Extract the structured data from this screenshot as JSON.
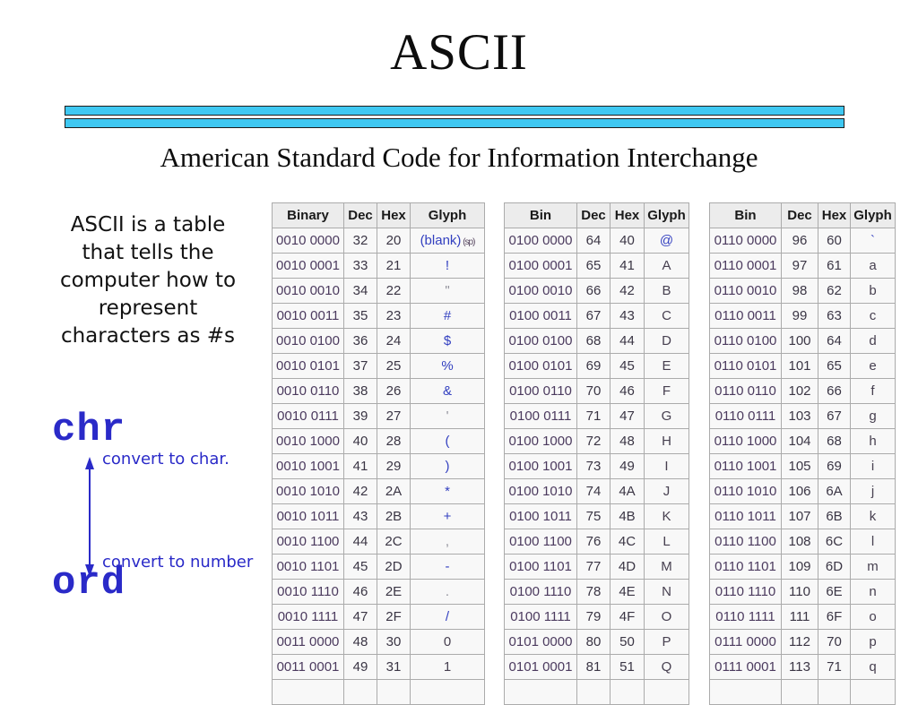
{
  "slide": {
    "title": "ASCII",
    "subtitle": "American Standard Code for Information Interchange",
    "description_lines": [
      "ASCII is a table",
      "that tells the",
      "computer how to",
      "represent",
      "characters as #s"
    ],
    "chr_label": "chr",
    "convert_to_char_label": "convert to char.",
    "convert_to_number_label": "convert to number",
    "ord_label": "ord",
    "colors": {
      "accent_bar_cyan": "#3fc8f2",
      "code_blue": "#2a2ac8",
      "table_link_blue": "#3340c0",
      "table_binary_purple": "#4b3a5e",
      "table_number_dark": "#3a3544",
      "table_glyph_muted": "#90909a",
      "table_glyph_plain": "#474050"
    }
  },
  "tables": [
    {
      "headers": [
        "Binary",
        "Dec",
        "Hex",
        "Glyph"
      ],
      "rows": [
        {
          "bin": "0010 0000",
          "dec": "32",
          "hex": "20",
          "glyph": "(blank)",
          "glyph_small": " (sp)",
          "style": "link"
        },
        {
          "bin": "0010 0001",
          "dec": "33",
          "hex": "21",
          "glyph": "!",
          "style": "link"
        },
        {
          "bin": "0010 0010",
          "dec": "34",
          "hex": "22",
          "glyph": "\"",
          "style": "muted"
        },
        {
          "bin": "0010 0011",
          "dec": "35",
          "hex": "23",
          "glyph": "#",
          "style": "link"
        },
        {
          "bin": "0010 0100",
          "dec": "36",
          "hex": "24",
          "glyph": "$",
          "style": "link"
        },
        {
          "bin": "0010 0101",
          "dec": "37",
          "hex": "25",
          "glyph": "%",
          "style": "link"
        },
        {
          "bin": "0010 0110",
          "dec": "38",
          "hex": "26",
          "glyph": "&",
          "style": "link"
        },
        {
          "bin": "0010 0111",
          "dec": "39",
          "hex": "27",
          "glyph": "'",
          "style": "muted"
        },
        {
          "bin": "0010 1000",
          "dec": "40",
          "hex": "28",
          "glyph": "(",
          "style": "link"
        },
        {
          "bin": "0010 1001",
          "dec": "41",
          "hex": "29",
          "glyph": ")",
          "style": "link"
        },
        {
          "bin": "0010 1010",
          "dec": "42",
          "hex": "2A",
          "glyph": "*",
          "style": "link"
        },
        {
          "bin": "0010 1011",
          "dec": "43",
          "hex": "2B",
          "glyph": "+",
          "style": "link"
        },
        {
          "bin": "0010 1100",
          "dec": "44",
          "hex": "2C",
          "glyph": ",",
          "style": "muted"
        },
        {
          "bin": "0010 1101",
          "dec": "45",
          "hex": "2D",
          "glyph": "-",
          "style": "link"
        },
        {
          "bin": "0010 1110",
          "dec": "46",
          "hex": "2E",
          "glyph": ".",
          "style": "muted"
        },
        {
          "bin": "0010 1111",
          "dec": "47",
          "hex": "2F",
          "glyph": "/",
          "style": "link"
        },
        {
          "bin": "0011 0000",
          "dec": "48",
          "hex": "30",
          "glyph": "0",
          "style": "plain"
        },
        {
          "bin": "0011 0001",
          "dec": "49",
          "hex": "31",
          "glyph": "1",
          "style": "plain"
        }
      ],
      "partial_row_visible": true
    },
    {
      "headers": [
        "Bin",
        "Dec",
        "Hex",
        "Glyph"
      ],
      "rows": [
        {
          "bin": "0100 0000",
          "dec": "64",
          "hex": "40",
          "glyph": "@",
          "style": "link"
        },
        {
          "bin": "0100 0001",
          "dec": "65",
          "hex": "41",
          "glyph": "A",
          "style": "plain"
        },
        {
          "bin": "0100 0010",
          "dec": "66",
          "hex": "42",
          "glyph": "B",
          "style": "plain"
        },
        {
          "bin": "0100 0011",
          "dec": "67",
          "hex": "43",
          "glyph": "C",
          "style": "plain"
        },
        {
          "bin": "0100 0100",
          "dec": "68",
          "hex": "44",
          "glyph": "D",
          "style": "plain"
        },
        {
          "bin": "0100 0101",
          "dec": "69",
          "hex": "45",
          "glyph": "E",
          "style": "plain"
        },
        {
          "bin": "0100 0110",
          "dec": "70",
          "hex": "46",
          "glyph": "F",
          "style": "plain"
        },
        {
          "bin": "0100 0111",
          "dec": "71",
          "hex": "47",
          "glyph": "G",
          "style": "plain"
        },
        {
          "bin": "0100 1000",
          "dec": "72",
          "hex": "48",
          "glyph": "H",
          "style": "plain"
        },
        {
          "bin": "0100 1001",
          "dec": "73",
          "hex": "49",
          "glyph": "I",
          "style": "plain"
        },
        {
          "bin": "0100 1010",
          "dec": "74",
          "hex": "4A",
          "glyph": "J",
          "style": "plain"
        },
        {
          "bin": "0100 1011",
          "dec": "75",
          "hex": "4B",
          "glyph": "K",
          "style": "plain"
        },
        {
          "bin": "0100 1100",
          "dec": "76",
          "hex": "4C",
          "glyph": "L",
          "style": "plain"
        },
        {
          "bin": "0100 1101",
          "dec": "77",
          "hex": "4D",
          "glyph": "M",
          "style": "plain"
        },
        {
          "bin": "0100 1110",
          "dec": "78",
          "hex": "4E",
          "glyph": "N",
          "style": "plain"
        },
        {
          "bin": "0100 1111",
          "dec": "79",
          "hex": "4F",
          "glyph": "O",
          "style": "plain"
        },
        {
          "bin": "0101 0000",
          "dec": "80",
          "hex": "50",
          "glyph": "P",
          "style": "plain"
        },
        {
          "bin": "0101 0001",
          "dec": "81",
          "hex": "51",
          "glyph": "Q",
          "style": "plain"
        }
      ],
      "partial_row_visible": true
    },
    {
      "headers": [
        "Bin",
        "Dec",
        "Hex",
        "Glyph"
      ],
      "rows": [
        {
          "bin": "0110 0000",
          "dec": "96",
          "hex": "60",
          "glyph": "`",
          "style": "link"
        },
        {
          "bin": "0110 0001",
          "dec": "97",
          "hex": "61",
          "glyph": "a",
          "style": "plain"
        },
        {
          "bin": "0110 0010",
          "dec": "98",
          "hex": "62",
          "glyph": "b",
          "style": "plain"
        },
        {
          "bin": "0110 0011",
          "dec": "99",
          "hex": "63",
          "glyph": "c",
          "style": "plain"
        },
        {
          "bin": "0110 0100",
          "dec": "100",
          "hex": "64",
          "glyph": "d",
          "style": "plain"
        },
        {
          "bin": "0110 0101",
          "dec": "101",
          "hex": "65",
          "glyph": "e",
          "style": "plain"
        },
        {
          "bin": "0110 0110",
          "dec": "102",
          "hex": "66",
          "glyph": "f",
          "style": "plain"
        },
        {
          "bin": "0110 0111",
          "dec": "103",
          "hex": "67",
          "glyph": "g",
          "style": "plain"
        },
        {
          "bin": "0110 1000",
          "dec": "104",
          "hex": "68",
          "glyph": "h",
          "style": "plain"
        },
        {
          "bin": "0110 1001",
          "dec": "105",
          "hex": "69",
          "glyph": "i",
          "style": "plain"
        },
        {
          "bin": "0110 1010",
          "dec": "106",
          "hex": "6A",
          "glyph": "j",
          "style": "plain"
        },
        {
          "bin": "0110 1011",
          "dec": "107",
          "hex": "6B",
          "glyph": "k",
          "style": "plain"
        },
        {
          "bin": "0110 1100",
          "dec": "108",
          "hex": "6C",
          "glyph": "l",
          "style": "plain"
        },
        {
          "bin": "0110 1101",
          "dec": "109",
          "hex": "6D",
          "glyph": "m",
          "style": "plain"
        },
        {
          "bin": "0110 1110",
          "dec": "110",
          "hex": "6E",
          "glyph": "n",
          "style": "plain"
        },
        {
          "bin": "0110 1111",
          "dec": "111",
          "hex": "6F",
          "glyph": "o",
          "style": "plain"
        },
        {
          "bin": "0111 0000",
          "dec": "112",
          "hex": "70",
          "glyph": "p",
          "style": "plain"
        },
        {
          "bin": "0111 0001",
          "dec": "113",
          "hex": "71",
          "glyph": "q",
          "style": "plain"
        }
      ],
      "partial_row_visible": true
    }
  ]
}
